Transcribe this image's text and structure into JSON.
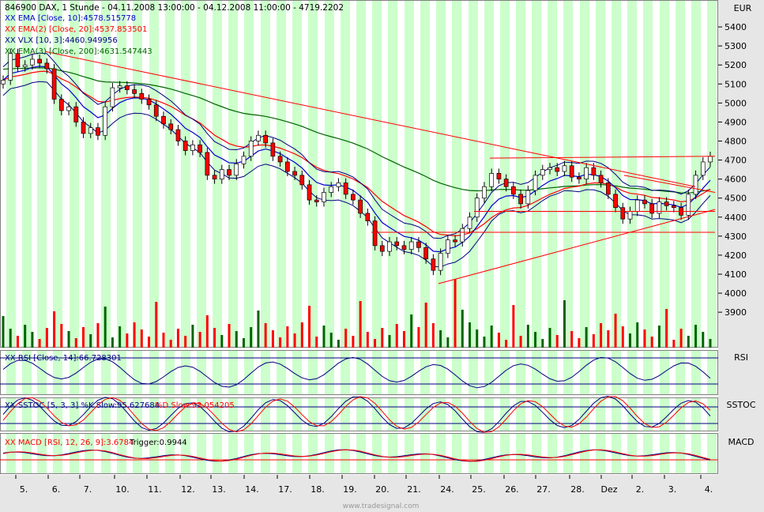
{
  "header": {
    "title": "846900  DAX, 1 Stunde - 04.11.2008 13:00:00 - 04.12.2008 11:00:00 - 4719.2202",
    "currency": "EUR",
    "legend_ema10": "XX EMA [Close, 10]:4578.515778",
    "legend_ema20": "XX EMA(2) [Close, 20]:4537.853501",
    "legend_vlx": "XX VLX [10, 3]:4460.949956",
    "legend_ema200": "XX EMA(3) [Close, 200]:4631.547443"
  },
  "panels": {
    "rsi_label": "RSI",
    "rsi_legend": "XX RSI [Close, 14]:66.728301",
    "sstoc_label": "SSTOC",
    "sstoc_legend_k": "XX SSTOC [5, 3, 3] %K Slow:95.627684",
    "sstoc_legend_d": "%D Slow:93.054205",
    "macd_label": "MACD",
    "macd_legend": "XX MACD [RSI, 12, 26, 9]:3.6784",
    "macd_trigger": "Trigger:0.9944"
  },
  "watermark": "www.tradesignal.com",
  "colors": {
    "up_candle": "#ffffff",
    "down_candle": "#ff0000",
    "ema10": "#0000cc",
    "ema20": "#ff0000",
    "vlx": "#000080",
    "ema200": "#006400",
    "trend_lines": "#ff0000",
    "volume_up": "#006400",
    "volume_down": "#ff0000",
    "stripe": "#ccffcc"
  },
  "chart_data": {
    "type": "candlestick",
    "instrument": "846900 DAX",
    "interval": "1 Stunde",
    "ylim": [
      3800,
      5500
    ],
    "y_ticks": [
      3900,
      4000,
      4100,
      4200,
      4300,
      4400,
      4500,
      4600,
      4700,
      4800,
      4900,
      5000,
      5100,
      5200,
      5300,
      5400
    ],
    "x_labels": [
      "5.",
      "6.",
      "7.",
      "10.",
      "11.",
      "12.",
      "13.",
      "14.",
      "17.",
      "18.",
      "19.",
      "20.",
      "21.",
      "24.",
      "25.",
      "26.",
      "27.",
      "28.",
      "Dez",
      "2.",
      "3.",
      "4."
    ],
    "close_path": [
      [
        0,
        5120
      ],
      [
        1,
        5260
      ],
      [
        2,
        5190
      ],
      [
        3,
        5200
      ],
      [
        4,
        5230
      ],
      [
        5,
        5210
      ],
      [
        6,
        5180
      ],
      [
        7,
        5020
      ],
      [
        8,
        4960
      ],
      [
        9,
        4980
      ],
      [
        10,
        4900
      ],
      [
        11,
        4840
      ],
      [
        12,
        4870
      ],
      [
        13,
        4830
      ],
      [
        14,
        4980
      ],
      [
        15,
        5080
      ],
      [
        16,
        5090
      ],
      [
        17,
        5070
      ],
      [
        18,
        5050
      ],
      [
        19,
        5020
      ],
      [
        20,
        4990
      ],
      [
        21,
        4930
      ],
      [
        22,
        4890
      ],
      [
        23,
        4860
      ],
      [
        24,
        4800
      ],
      [
        25,
        4750
      ],
      [
        26,
        4780
      ],
      [
        27,
        4740
      ],
      [
        28,
        4620
      ],
      [
        29,
        4600
      ],
      [
        30,
        4650
      ],
      [
        31,
        4620
      ],
      [
        32,
        4680
      ],
      [
        33,
        4720
      ],
      [
        34,
        4800
      ],
      [
        35,
        4830
      ],
      [
        36,
        4790
      ],
      [
        37,
        4720
      ],
      [
        38,
        4690
      ],
      [
        39,
        4640
      ],
      [
        40,
        4620
      ],
      [
        41,
        4570
      ],
      [
        42,
        4490
      ],
      [
        43,
        4480
      ],
      [
        44,
        4530
      ],
      [
        45,
        4560
      ],
      [
        46,
        4580
      ],
      [
        47,
        4520
      ],
      [
        48,
        4490
      ],
      [
        49,
        4420
      ],
      [
        50,
        4380
      ],
      [
        51,
        4250
      ],
      [
        52,
        4220
      ],
      [
        53,
        4270
      ],
      [
        54,
        4250
      ],
      [
        55,
        4230
      ],
      [
        56,
        4270
      ],
      [
        57,
        4240
      ],
      [
        58,
        4180
      ],
      [
        59,
        4120
      ],
      [
        60,
        4210
      ],
      [
        61,
        4280
      ],
      [
        62,
        4270
      ],
      [
        63,
        4340
      ],
      [
        64,
        4400
      ],
      [
        65,
        4500
      ],
      [
        66,
        4560
      ],
      [
        67,
        4630
      ],
      [
        68,
        4600
      ],
      [
        69,
        4560
      ],
      [
        70,
        4520
      ],
      [
        71,
        4470
      ],
      [
        72,
        4540
      ],
      [
        73,
        4620
      ],
      [
        74,
        4650
      ],
      [
        75,
        4660
      ],
      [
        76,
        4640
      ],
      [
        77,
        4670
      ],
      [
        78,
        4610
      ],
      [
        79,
        4600
      ],
      [
        80,
        4660
      ],
      [
        81,
        4620
      ],
      [
        82,
        4580
      ],
      [
        83,
        4520
      ],
      [
        84,
        4450
      ],
      [
        85,
        4390
      ],
      [
        86,
        4430
      ],
      [
        87,
        4490
      ],
      [
        88,
        4470
      ],
      [
        89,
        4420
      ],
      [
        90,
        4480
      ],
      [
        91,
        4460
      ],
      [
        92,
        4450
      ],
      [
        93,
        4410
      ],
      [
        94,
        4520
      ],
      [
        95,
        4620
      ],
      [
        96,
        4690
      ],
      [
        97,
        4719
      ]
    ],
    "indicators": {
      "ema10_last": 4578.515778,
      "ema20_last": 4537.853501,
      "vlx_last": 4460.949956,
      "ema200_last": 4631.547443,
      "rsi_last": 66.728301,
      "sstoc_k_last": 95.627684,
      "sstoc_d_last": 93.054205,
      "macd_last": 3.6784,
      "macd_trigger_last": 0.9944
    }
  }
}
